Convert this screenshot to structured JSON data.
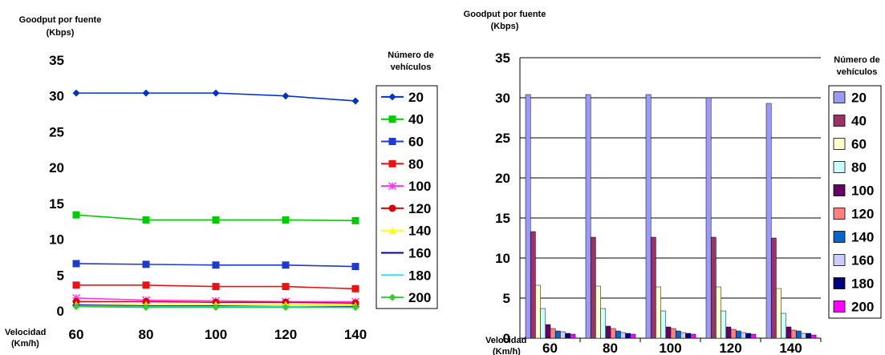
{
  "chart_data": [
    {
      "type": "line",
      "ylabel_line1": "Goodput por fuente",
      "ylabel_line2": "(Kbps)",
      "xlabel_line1": "Velocidad",
      "xlabel_line2": "(Km/h)",
      "legend_title_line1": "Número de",
      "legend_title_line2": "vehículos",
      "legend_position": "right",
      "grid": false,
      "categories": [
        "60",
        "80",
        "100",
        "120",
        "140"
      ],
      "y_ticks": [
        "0",
        "5",
        "10",
        "15",
        "20",
        "25",
        "30",
        "35"
      ],
      "ylim": [
        0,
        35
      ],
      "series": [
        {
          "name": "20",
          "values": [
            30.4,
            30.4,
            30.4,
            30.0,
            29.3
          ],
          "color": "#0033cc",
          "marker": "diamond"
        },
        {
          "name": "40",
          "values": [
            13.4,
            12.7,
            12.7,
            12.7,
            12.6
          ],
          "color": "#00cc00",
          "marker": "square"
        },
        {
          "name": "60",
          "values": [
            6.6,
            6.5,
            6.4,
            6.4,
            6.2
          ],
          "color": "#1f3bcc",
          "marker": "square"
        },
        {
          "name": "80",
          "values": [
            3.6,
            3.6,
            3.4,
            3.4,
            3.1
          ],
          "color": "#ee1111",
          "marker": "square"
        },
        {
          "name": "100",
          "values": [
            1.8,
            1.5,
            1.4,
            1.3,
            1.3
          ],
          "color": "#ff33ff",
          "marker": "star"
        },
        {
          "name": "120",
          "values": [
            1.3,
            1.3,
            1.2,
            1.2,
            1.1
          ],
          "color": "#dd0000",
          "marker": "circle"
        },
        {
          "name": "140",
          "values": [
            0.9,
            0.9,
            0.9,
            0.9,
            0.8
          ],
          "color": "#ffff00",
          "marker": "triangle"
        },
        {
          "name": "160",
          "values": [
            0.8,
            0.7,
            0.7,
            0.6,
            0.6
          ],
          "color": "#0000aa",
          "marker": "dash"
        },
        {
          "name": "180",
          "values": [
            0.7,
            0.6,
            0.6,
            0.6,
            0.5
          ],
          "color": "#33ddff",
          "marker": "none"
        },
        {
          "name": "200",
          "values": [
            0.6,
            0.5,
            0.5,
            0.5,
            0.5
          ],
          "color": "#33cc33",
          "marker": "diamond"
        }
      ]
    },
    {
      "type": "bar",
      "ylabel_line1": "Goodput por fuente",
      "ylabel_line2": "(Kbps)",
      "xlabel_line1": "Velocidad",
      "xlabel_line2": "(Km/h)",
      "legend_title_line1": "Número de",
      "legend_title_line2": "vehículos",
      "legend_position": "right",
      "grid": true,
      "categories": [
        "60",
        "80",
        "100",
        "120",
        "140"
      ],
      "y_ticks": [
        "0",
        "5",
        "10",
        "15",
        "20",
        "25",
        "30",
        "35"
      ],
      "ylim": [
        0,
        35
      ],
      "series": [
        {
          "name": "20",
          "values": [
            30.4,
            30.4,
            30.4,
            30.0,
            29.3
          ],
          "color": "#9999ff"
        },
        {
          "name": "40",
          "values": [
            13.3,
            12.6,
            12.6,
            12.6,
            12.5
          ],
          "color": "#993366"
        },
        {
          "name": "60",
          "values": [
            6.6,
            6.5,
            6.4,
            6.4,
            6.2
          ],
          "color": "#ffffcc"
        },
        {
          "name": "80",
          "values": [
            3.7,
            3.7,
            3.4,
            3.4,
            3.1
          ],
          "color": "#ccffff"
        },
        {
          "name": "100",
          "values": [
            1.7,
            1.5,
            1.4,
            1.4,
            1.4
          ],
          "color": "#660066"
        },
        {
          "name": "120",
          "values": [
            1.2,
            1.2,
            1.2,
            1.1,
            1.0
          ],
          "color": "#ff8080"
        },
        {
          "name": "140",
          "values": [
            0.9,
            0.9,
            0.9,
            0.9,
            0.9
          ],
          "color": "#0066cc"
        },
        {
          "name": "160",
          "values": [
            0.8,
            0.7,
            0.7,
            0.7,
            0.6
          ],
          "color": "#ccccff"
        },
        {
          "name": "180",
          "values": [
            0.6,
            0.6,
            0.6,
            0.6,
            0.6
          ],
          "color": "#000080"
        },
        {
          "name": "200",
          "values": [
            0.5,
            0.5,
            0.5,
            0.5,
            0.4
          ],
          "color": "#ff00ff"
        }
      ]
    }
  ]
}
